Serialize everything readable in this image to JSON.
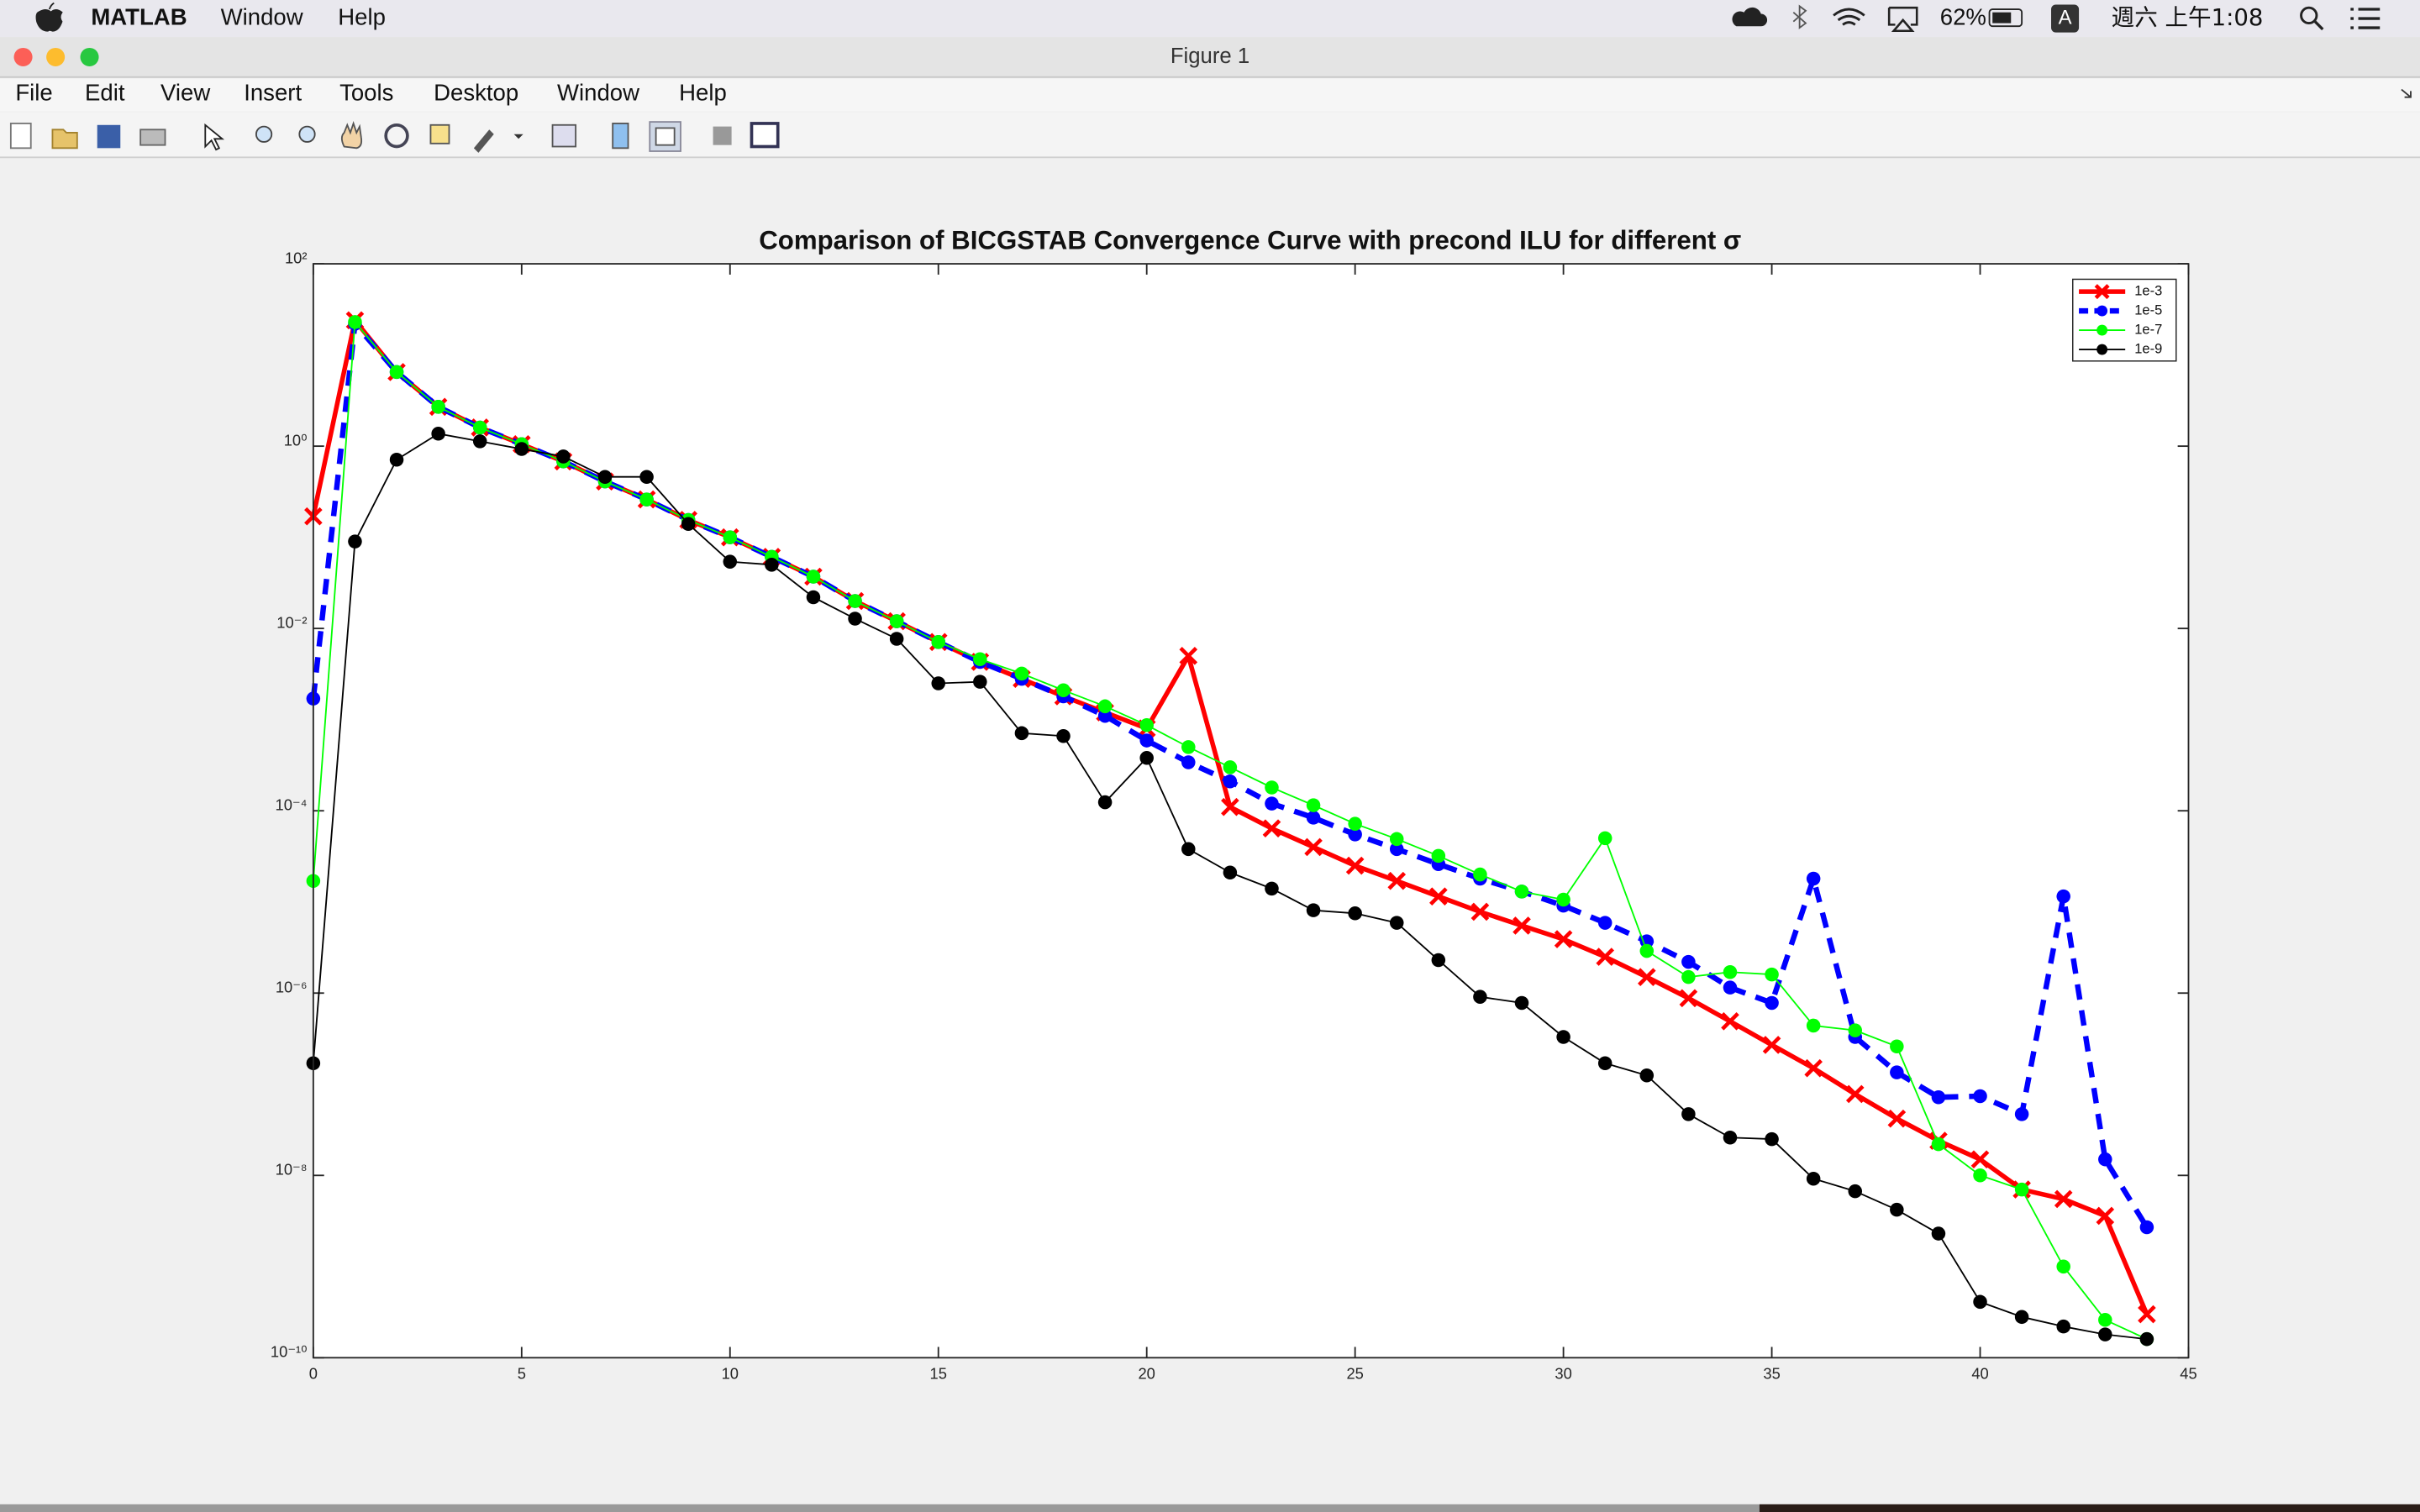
{
  "menubar": {
    "app": "MATLAB",
    "items": [
      "Window",
      "Help"
    ],
    "battery": "62%",
    "input": "A",
    "clock": "週六 上午1:08"
  },
  "window": {
    "title": "Figure 1",
    "menus": [
      "File",
      "Edit",
      "View",
      "Insert",
      "Tools",
      "Desktop",
      "Window",
      "Help"
    ]
  },
  "chart_data": {
    "type": "line",
    "title": "Comparison of BICGSTAB Convergence Curve with precond ILU for different σ",
    "x": [
      0,
      1,
      2,
      3,
      4,
      5,
      6,
      7,
      8,
      9,
      10,
      11,
      12,
      13,
      14,
      15,
      16,
      17,
      18,
      19,
      20,
      21,
      22,
      23,
      24,
      25,
      26,
      27,
      28,
      29,
      30,
      31,
      32,
      33,
      34,
      35,
      36,
      37,
      38,
      39,
      40,
      41,
      42,
      43,
      44
    ],
    "xlim": [
      0,
      45
    ],
    "xticks": [
      0,
      5,
      10,
      15,
      20,
      25,
      30,
      35,
      40,
      45
    ],
    "yscale": "log",
    "ylim": [
      1e-10,
      100
    ],
    "yticks": [
      {
        "value": 1e-10,
        "label": "10⁻¹⁰"
      },
      {
        "value": 1e-08,
        "label": "10⁻⁸"
      },
      {
        "value": 1e-06,
        "label": "10⁻⁶"
      },
      {
        "value": 0.0001,
        "label": "10⁻⁴"
      },
      {
        "value": 0.01,
        "label": "10⁻²"
      },
      {
        "value": 1,
        "label": "10⁰"
      },
      {
        "value": 100,
        "label": "10²"
      }
    ],
    "grid": false,
    "legend_loc": "upper right",
    "series": [
      {
        "name": "1e-3",
        "color": "#ff0000",
        "marker": "x",
        "line_width": 3,
        "dashed": false,
        "values": [
          0.17,
          24,
          6.5,
          2.7,
          1.6,
          1.05,
          0.68,
          0.41,
          0.26,
          0.155,
          0.1,
          0.061,
          0.037,
          0.02,
          0.012,
          0.0071,
          0.0043,
          0.0028,
          0.0018,
          0.0012,
          0.0008,
          0.005,
          0.00011,
          6.4e-05,
          4e-05,
          2.5e-05,
          1.7e-05,
          1.15e-05,
          7.8e-06,
          5.5e-06,
          3.9e-06,
          2.5e-06,
          1.5e-06,
          8.8e-07,
          4.9e-07,
          2.7e-07,
          1.5e-07,
          7.8e-08,
          4.2e-08,
          2.4e-08,
          1.5e-08,
          7e-09,
          5.5e-09,
          3.6e-09,
          3e-10
        ]
      },
      {
        "name": "1e-5",
        "color": "#0000ff",
        "marker": "o",
        "line_width": 3.5,
        "dashed": true,
        "values": [
          0.0017,
          22,
          6.5,
          2.7,
          1.6,
          1.05,
          0.68,
          0.41,
          0.26,
          0.155,
          0.1,
          0.061,
          0.037,
          0.02,
          0.012,
          0.0071,
          0.0043,
          0.0028,
          0.0018,
          0.0011,
          0.00059,
          0.00034,
          0.00021,
          0.00012,
          8.4e-05,
          5.5e-05,
          3.8e-05,
          2.6e-05,
          1.8e-05,
          1.3e-05,
          9.1e-06,
          5.9e-06,
          3.7e-06,
          2.2e-06,
          1.15e-06,
          7.8e-07,
          1.8e-05,
          3.3e-07,
          1.35e-07,
          7.2e-08,
          7.4e-08,
          4.7e-08,
          1.15e-05,
          1.5e-08,
          2.7e-09
        ]
      },
      {
        "name": "1e-7",
        "color": "#00ff00",
        "marker": "o",
        "line_width": 1,
        "dashed": false,
        "values": [
          1.7e-05,
          23,
          6.5,
          2.7,
          1.6,
          1.05,
          0.68,
          0.41,
          0.26,
          0.155,
          0.1,
          0.061,
          0.037,
          0.02,
          0.012,
          0.0071,
          0.0046,
          0.0032,
          0.0021,
          0.0014,
          0.00087,
          0.0005,
          0.0003,
          0.00018,
          0.000115,
          7.2e-05,
          4.9e-05,
          3.2e-05,
          2e-05,
          1.3e-05,
          1.06e-05,
          5e-05,
          2.9e-06,
          1.5e-06,
          1.7e-06,
          1.6e-06,
          4.4e-07,
          3.9e-07,
          2.6e-07,
          2.2e-08,
          1e-08,
          7e-09,
          1e-09,
          2.6e-10,
          1.6e-10
        ]
      },
      {
        "name": "1e-9",
        "color": "#000000",
        "marker": "o",
        "line_width": 1,
        "dashed": false,
        "values": [
          1.7e-07,
          0.09,
          0.71,
          1.37,
          1.13,
          0.93,
          0.77,
          0.46,
          0.46,
          0.14,
          0.054,
          0.05,
          0.022,
          0.0128,
          0.0077,
          0.0025,
          0.0026,
          0.00071,
          0.00066,
          0.000124,
          0.00038,
          3.8e-05,
          2.1e-05,
          1.4e-05,
          8.1e-06,
          7.5e-06,
          5.9e-06,
          2.3e-06,
          9.1e-07,
          7.8e-07,
          3.3e-07,
          1.7e-07,
          1.25e-07,
          4.7e-08,
          2.6e-08,
          2.5e-08,
          9.2e-09,
          6.7e-09,
          4.2e-09,
          2.3e-09,
          4.1e-10,
          2.8e-10,
          2.2e-10,
          1.8e-10,
          1.6e-10
        ]
      }
    ]
  }
}
